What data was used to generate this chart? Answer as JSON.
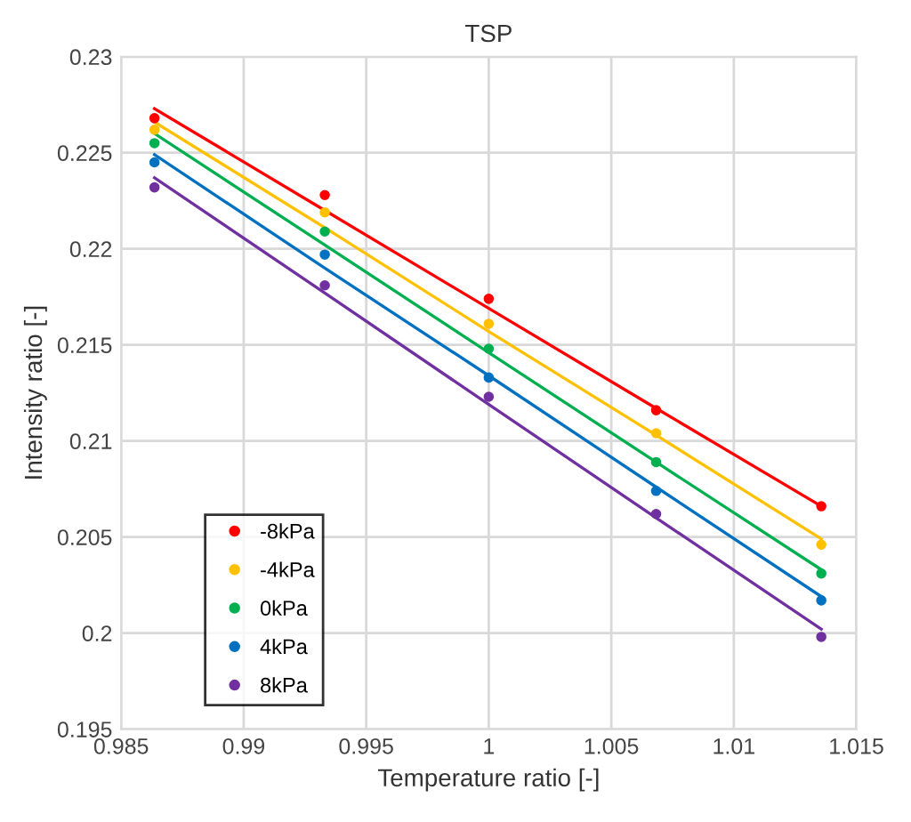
{
  "chart_data": {
    "type": "scatter",
    "title": "TSP",
    "xlabel": "Temperature ratio [-]",
    "ylabel": "Intensity ratio [-]",
    "x": [
      0.98636,
      0.99331,
      1.0,
      1.00683,
      1.01357
    ],
    "series": [
      {
        "name": "-8kPa",
        "marker": "circle",
        "color": "#ff0000",
        "values": [
          0.2268,
          0.2228,
          0.2174,
          0.2116,
          0.2066
        ]
      },
      {
        "name": "-4kPa",
        "marker": "circle",
        "color": "#ffc000",
        "values": [
          0.2262,
          0.2219,
          0.2161,
          0.2104,
          0.2046
        ]
      },
      {
        "name": "0kPa",
        "marker": "circle",
        "color": "#00b050",
        "values": [
          0.2255,
          0.2209,
          0.2148,
          0.2089,
          0.2031
        ]
      },
      {
        "name": "4kPa",
        "marker": "circle",
        "color": "#0070c0",
        "values": [
          0.2245,
          0.2197,
          0.2133,
          0.2074,
          0.2017
        ]
      },
      {
        "name": "8kPa",
        "marker": "circle",
        "color": "#7030a0",
        "values": [
          0.2232,
          0.2181,
          0.2123,
          0.2062,
          0.1998
        ]
      },
      {
        "type": "line",
        "color": "#ff0000",
        "values": [
          0.2273,
          0.222,
          0.2169,
          0.2117,
          0.2066
        ]
      },
      {
        "type": "line",
        "color": "#ffc000",
        "values": [
          0.2266,
          0.2211,
          0.2157,
          0.2103,
          0.2049
        ]
      },
      {
        "type": "line",
        "color": "#00b050",
        "values": [
          0.226,
          0.2202,
          0.2146,
          0.2089,
          0.2033
        ]
      },
      {
        "type": "line",
        "color": "#0070c0",
        "values": [
          0.2249,
          0.219,
          0.2134,
          0.2076,
          0.2019
        ]
      },
      {
        "type": "line",
        "color": "#7030a0",
        "values": [
          0.2237,
          0.2177,
          0.2119,
          0.206,
          0.2002
        ]
      }
    ],
    "xlim": [
      0.985,
      1.015
    ],
    "xticks": [
      0.985,
      0.99,
      0.995,
      1,
      1.005,
      1.01,
      1.015
    ],
    "ylim": [
      0.195,
      0.23
    ],
    "yticks": [
      0.195,
      0.2,
      0.205,
      0.21,
      0.215,
      0.22,
      0.225,
      0.23
    ],
    "grid": true,
    "legend": "bottom left"
  }
}
